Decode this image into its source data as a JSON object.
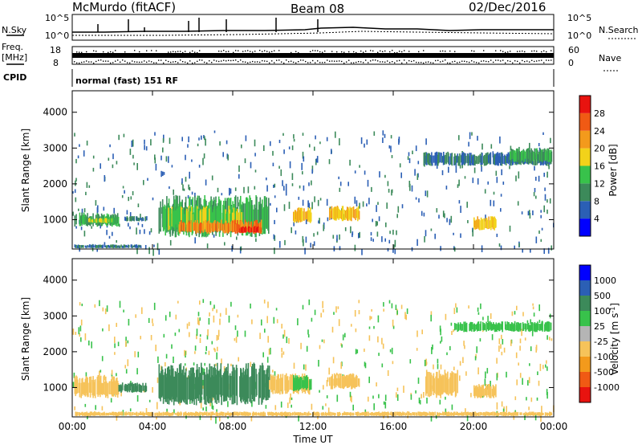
{
  "header": {
    "station": "McMurdo (fitACF)",
    "beam": "Beam 08",
    "date": "02/Dec/2016"
  },
  "top_panel": {
    "left_label_sky": "N.Sky",
    "left_ticks": [
      "10^5",
      "10^0"
    ],
    "right_label_search": "N.Search",
    "right_ticks": [
      "10^5",
      "10^0"
    ],
    "freq_label": "Freq.",
    "freq_unit": "[MHz]",
    "freq_ticks": [
      "18",
      "8"
    ],
    "nave_label": "Nave",
    "nave_ticks": [
      "60",
      "0"
    ],
    "cpid_label": "CPID",
    "cpid_text": "normal (fast) 151 RF"
  },
  "colors": {
    "power": [
      "#0000ff",
      "#2b5fb5",
      "#3c8a5a",
      "#38c24b",
      "#f2d21a",
      "#f39a1c",
      "#f05a14",
      "#e8130f"
    ],
    "velocity": [
      "#e8130f",
      "#f05a14",
      "#f39a1c",
      "#f6c35a",
      "#b5b5b5",
      "#38c24b",
      "#3c8a5a",
      "#2b5fb5",
      "#0000ff"
    ]
  },
  "chart_data": [
    {
      "type": "heatmap",
      "name": "",
      "xlabel": "Time UT",
      "ylabel": "Slant Range [km]",
      "x_ticks": [
        "00:00",
        "04:00",
        "08:00",
        "12:00",
        "16:00",
        "20:00",
        "00:00"
      ],
      "y_ticks": [
        1000,
        2000,
        3000,
        4000
      ],
      "xlim_hours": [
        0,
        24
      ],
      "ylim_km": [
        180,
        4600
      ],
      "colorbar": {
        "label": "Power [dB]",
        "ticks": [
          "4",
          "8",
          "12",
          "16",
          "20",
          "24",
          "28"
        ],
        "range": [
          0,
          32
        ]
      },
      "patches": [
        {
          "x0": 0.1,
          "x1": 3.4,
          "y0": 200,
          "y1": 310,
          "value": 8
        },
        {
          "x0": 0.1,
          "x1": 2.3,
          "y0": 800,
          "y1": 1200,
          "value": 12
        },
        {
          "x0": 0.8,
          "x1": 2.0,
          "y0": 900,
          "y1": 1050,
          "value": 16
        },
        {
          "x0": 2.6,
          "x1": 3.7,
          "y0": 950,
          "y1": 1100,
          "value": 8
        },
        {
          "x0": 4.3,
          "x1": 9.8,
          "y0": 500,
          "y1": 1700,
          "value": 12
        },
        {
          "x0": 4.7,
          "x1": 8.5,
          "y0": 700,
          "y1": 1400,
          "value": 16
        },
        {
          "x0": 5.3,
          "x1": 9.4,
          "y0": 600,
          "y1": 1000,
          "value": 24
        },
        {
          "x0": 8.3,
          "x1": 9.4,
          "y0": 620,
          "y1": 820,
          "value": 28
        },
        {
          "x0": 11.0,
          "x1": 11.9,
          "y0": 900,
          "y1": 1350,
          "value": 20
        },
        {
          "x0": 12.8,
          "x1": 14.3,
          "y0": 950,
          "y1": 1400,
          "value": 20
        },
        {
          "x0": 20.0,
          "x1": 21.1,
          "y0": 700,
          "y1": 1100,
          "value": 20
        },
        {
          "x0": 17.5,
          "x1": 23.9,
          "y0": 2500,
          "y1": 2900,
          "value": 8
        },
        {
          "x0": 21.8,
          "x1": 23.9,
          "y0": 2600,
          "y1": 3000,
          "value": 12
        }
      ]
    },
    {
      "type": "heatmap",
      "name": "",
      "xlabel": "Time UT",
      "ylabel": "Slant Range [km]",
      "x_ticks": [
        "00:00",
        "04:00",
        "08:00",
        "12:00",
        "16:00",
        "20:00",
        "00:00"
      ],
      "y_ticks": [
        1000,
        2000,
        3000,
        4000
      ],
      "xlim_hours": [
        0,
        24
      ],
      "ylim_km": [
        180,
        4600
      ],
      "colorbar": {
        "label": "Velocity [m s",
        "label_sup": "-1",
        "label_end": "]",
        "ticks": [
          "1000",
          "500",
          "100",
          "25",
          "-25",
          "-100",
          "-500",
          "-1000"
        ]
      },
      "patches": [
        {
          "x0": 0.1,
          "x1": 2.3,
          "y0": 700,
          "y1": 1350,
          "value": -100
        },
        {
          "x0": 2.3,
          "x1": 3.7,
          "y0": 850,
          "y1": 1150,
          "value": 100
        },
        {
          "x0": 4.3,
          "x1": 9.8,
          "y0": 500,
          "y1": 1700,
          "value": 100
        },
        {
          "x0": 9.8,
          "x1": 11.8,
          "y0": 800,
          "y1": 1400,
          "value": -100
        },
        {
          "x0": 11.0,
          "x1": 11.9,
          "y0": 900,
          "y1": 1350,
          "value": 25
        },
        {
          "x0": 12.8,
          "x1": 14.3,
          "y0": 950,
          "y1": 1400,
          "value": -100
        },
        {
          "x0": 17.6,
          "x1": 19.2,
          "y0": 700,
          "y1": 1500,
          "value": -100
        },
        {
          "x0": 20.0,
          "x1": 21.1,
          "y0": 700,
          "y1": 1100,
          "value": -100
        },
        {
          "x0": 19.0,
          "x1": 23.9,
          "y0": 2550,
          "y1": 2850,
          "value": 25
        },
        {
          "x0": 0.1,
          "x1": 23.9,
          "y0": 200,
          "y1": 330,
          "value": -100
        }
      ]
    }
  ]
}
